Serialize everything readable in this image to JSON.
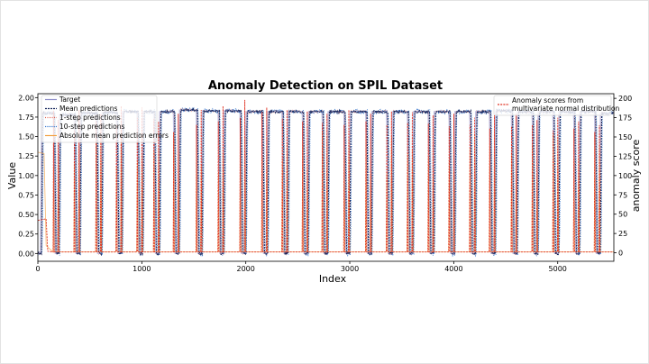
{
  "chart_data": {
    "type": "line",
    "title": "Anomaly Detection on SPIL Dataset",
    "xlabel": "Index",
    "ylabel": "Value",
    "y2label": "anomaly score",
    "xlim": [
      0,
      5540
    ],
    "ylim": [
      -0.1,
      2.05
    ],
    "y2lim": [
      -11,
      206
    ],
    "x_ticks": [
      0,
      1000,
      2000,
      3000,
      4000,
      5000
    ],
    "y_ticks": [
      0.0,
      0.25,
      0.5,
      0.75,
      1.0,
      1.25,
      1.5,
      1.75,
      2.0
    ],
    "y_tick_labels": [
      "0.00",
      "0.25",
      "0.50",
      "0.75",
      "1.00",
      "1.25",
      "1.50",
      "1.75",
      "2.00"
    ],
    "y2_ticks": [
      0,
      25,
      50,
      75,
      100,
      125,
      150,
      175,
      200
    ],
    "legend_left_position": "top-left",
    "legend_right_position": "top-right",
    "grid": false,
    "cycles": {
      "rise_starts": [
        25,
        195,
        395,
        605,
        800,
        1000,
        1160,
        1350,
        1570,
        1780,
        1990,
        2200,
        2395,
        2590,
        2780,
        2990,
        3200,
        3400,
        3600,
        3800,
        4000,
        4200,
        4390,
        4600,
        4800,
        5000,
        5200,
        5400
      ],
      "plateau_levels": [
        1.8,
        1.78,
        1.8,
        1.81,
        1.82,
        1.82,
        1.82,
        1.84,
        1.83,
        1.83,
        1.82,
        1.82,
        1.82,
        1.82,
        1.82,
        1.82,
        1.82,
        1.82,
        1.82,
        1.82,
        1.82,
        1.82,
        1.83,
        1.82,
        1.82,
        1.82,
        1.82,
        1.8
      ],
      "score_peaks": [
        200,
        172,
        185,
        180,
        190,
        188,
        170,
        180,
        185,
        190,
        198,
        188,
        185,
        183,
        180,
        185,
        180,
        183,
        182,
        178,
        180,
        175,
        178,
        180,
        172,
        175,
        170,
        165
      ]
    },
    "series": [
      {
        "name": "Target",
        "color": "#8c8cc8"
      },
      {
        "name": "Mean predictions",
        "color": "#1a2a5e"
      },
      {
        "name": "1-step predictions",
        "color": "#e06050"
      },
      {
        "name": "10-step predictions",
        "color": "#3a7ad0"
      },
      {
        "name": "Absolute mean prediction errors",
        "color": "#f2a040"
      },
      {
        "name": "Anomaly scores from\nmultivariate normal distribution",
        "color": "#e03020"
      }
    ],
    "legend_left": [
      "Target",
      "Mean predictions",
      "1-step predictions",
      "10-step predictions",
      "Absolute mean prediction errors"
    ],
    "legend_right": [
      "Anomaly scores from",
      "multivariate normal distribution"
    ]
  }
}
